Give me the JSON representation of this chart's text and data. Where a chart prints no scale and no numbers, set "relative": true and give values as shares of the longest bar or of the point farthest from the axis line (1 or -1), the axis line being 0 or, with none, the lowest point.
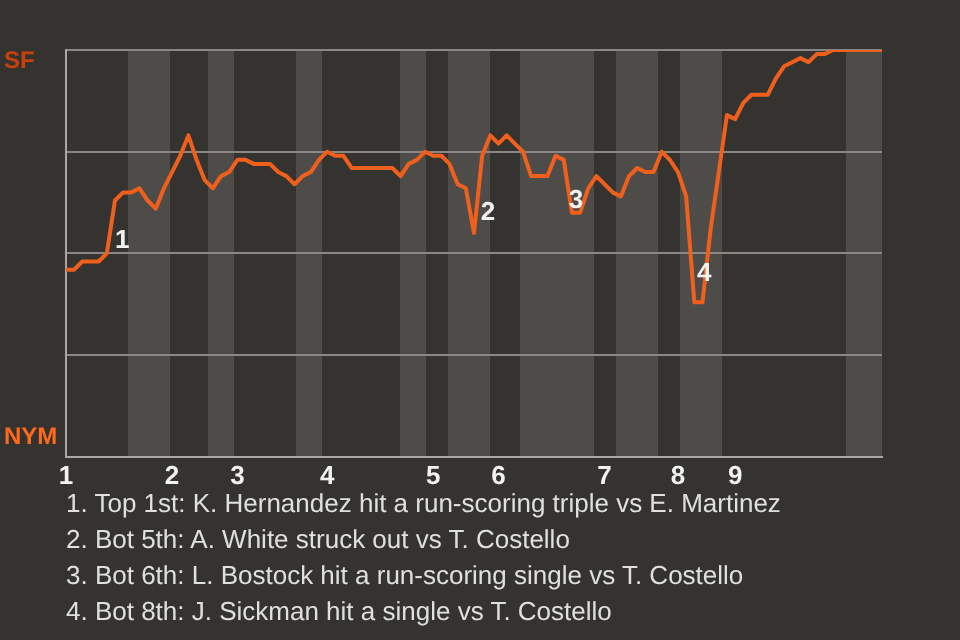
{
  "chart_data": {
    "type": "line",
    "relative": true,
    "categories": [
      "1",
      null,
      null,
      null,
      null,
      null,
      null,
      null,
      null,
      null,
      null,
      null,
      null,
      "2",
      null,
      null,
      null,
      null,
      null,
      null,
      null,
      "3",
      null,
      null,
      null,
      null,
      null,
      null,
      null,
      null,
      null,
      null,
      "4",
      null,
      null,
      null,
      null,
      null,
      null,
      null,
      null,
      null,
      null,
      null,
      null,
      "5",
      null,
      null,
      null,
      null,
      null,
      null,
      null,
      "6",
      null,
      null,
      null,
      null,
      null,
      null,
      null,
      null,
      null,
      null,
      null,
      null,
      "7",
      null,
      null,
      null,
      null,
      null,
      null,
      null,
      null,
      "8",
      null,
      null,
      null,
      null,
      null,
      null,
      "9",
      null,
      null,
      null,
      null,
      null,
      null,
      null,
      null,
      null,
      null,
      null,
      null,
      null,
      null,
      null,
      null,
      null,
      null
    ],
    "series": [
      {
        "color": "#f0601c",
        "values": [
          0.46,
          0.46,
          0.48,
          0.48,
          0.48,
          0.5,
          0.63,
          0.65,
          0.65,
          0.66,
          0.63,
          0.61,
          0.66,
          0.7,
          0.74,
          0.79,
          0.73,
          0.68,
          0.66,
          0.69,
          0.7,
          0.73,
          0.73,
          0.72,
          0.72,
          0.72,
          0.7,
          0.69,
          0.67,
          0.69,
          0.7,
          0.73,
          0.75,
          0.74,
          0.74,
          0.71,
          0.71,
          0.71,
          0.71,
          0.71,
          0.71,
          0.69,
          0.72,
          0.73,
          0.75,
          0.74,
          0.74,
          0.72,
          0.67,
          0.66,
          0.55,
          0.74,
          0.79,
          0.77,
          0.79,
          0.77,
          0.75,
          0.69,
          0.69,
          0.69,
          0.74,
          0.73,
          0.6,
          0.6,
          0.66,
          0.69,
          0.67,
          0.65,
          0.64,
          0.69,
          0.71,
          0.7,
          0.7,
          0.75,
          0.73,
          0.7,
          0.64,
          0.38,
          0.38,
          0.56,
          0.7,
          0.84,
          0.83,
          0.87,
          0.89,
          0.89,
          0.89,
          0.93,
          0.96,
          0.97,
          0.98,
          0.97,
          0.99,
          0.99,
          1.0,
          1.0,
          1.0,
          1.0,
          1.0,
          1.0,
          1.0
        ]
      }
    ],
    "grid": "y",
    "legend": false,
    "marker": "none",
    "annotations": [
      "SF",
      "NYM",
      "1",
      "2",
      "3",
      "4",
      "1. Top 1st: K. Hernandez hit a run-scoring triple vs E. Martinez",
      "2. Bot 5th: A. White struck out vs T. Costello",
      "3. Bot 6th: L. Bostock hit a run-scoring single vs T. Costello",
      "4. Bot 8th: J. Sickman hit a single vs T. Costello"
    ]
  }
}
